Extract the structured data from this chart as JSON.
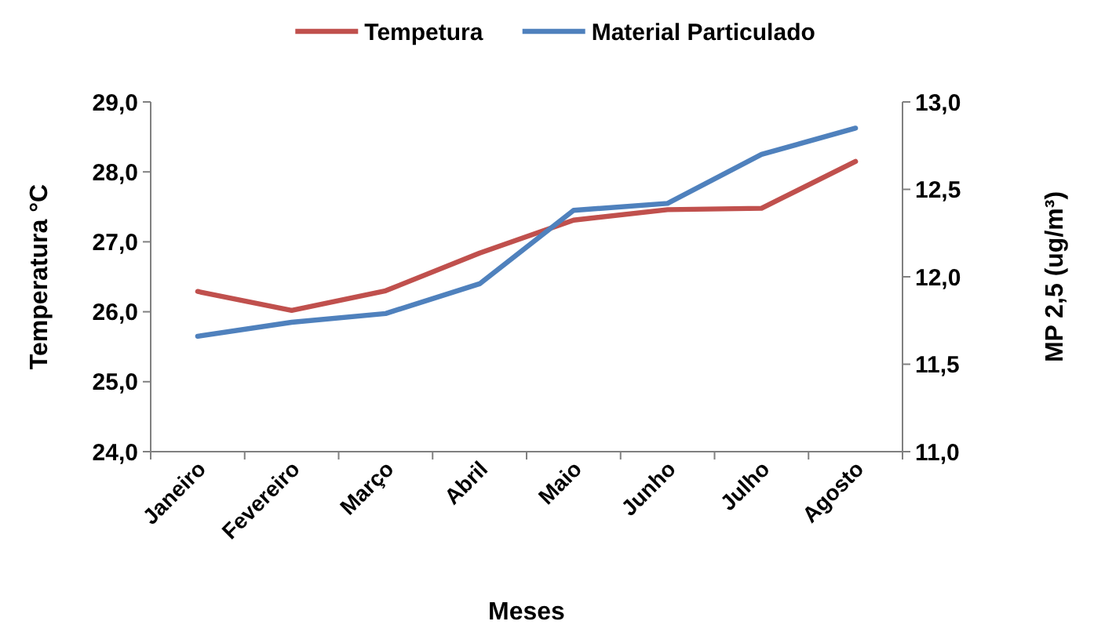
{
  "chart_data": {
    "type": "line",
    "xlabel": "Meses",
    "ylabel": "Temperatura °C",
    "y2label": "MP 2,5 (ug/m³)",
    "categories": [
      "Janeiro",
      "Fevereiro",
      "Março",
      "Abril",
      "Maio",
      "Junho",
      "Julho",
      "Agosto"
    ],
    "series": [
      {
        "name": "Tempetura",
        "color": "#c0504d",
        "values": [
          26.29,
          26.02,
          26.3,
          26.84,
          27.31,
          27.46,
          27.48,
          28.15
        ]
      },
      {
        "name": "Material Particulado",
        "color": "#4f81bd",
        "axis": "y2",
        "values": [
          11.66,
          11.74,
          11.79,
          11.96,
          12.38,
          12.42,
          12.7,
          12.85
        ]
      }
    ],
    "ylim": [
      24,
      29
    ],
    "yticks": [
      {
        "value": 24,
        "label": "24,0"
      },
      {
        "value": 25,
        "label": "25,0"
      },
      {
        "value": 26,
        "label": "26,0"
      },
      {
        "value": 27,
        "label": "27,0"
      },
      {
        "value": 28,
        "label": "28,0"
      },
      {
        "value": 29,
        "label": "29,0"
      }
    ],
    "y2lim": [
      11,
      13
    ],
    "y2ticks": [
      {
        "value": 11,
        "label": "11,0"
      },
      {
        "value": 11.5,
        "label": "11,5"
      },
      {
        "value": 12,
        "label": "12,0"
      },
      {
        "value": 12.5,
        "label": "12,5"
      },
      {
        "value": 13,
        "label": "13,0"
      }
    ],
    "legend": "top",
    "grid": false,
    "marker": "none",
    "line_style": "solid"
  }
}
